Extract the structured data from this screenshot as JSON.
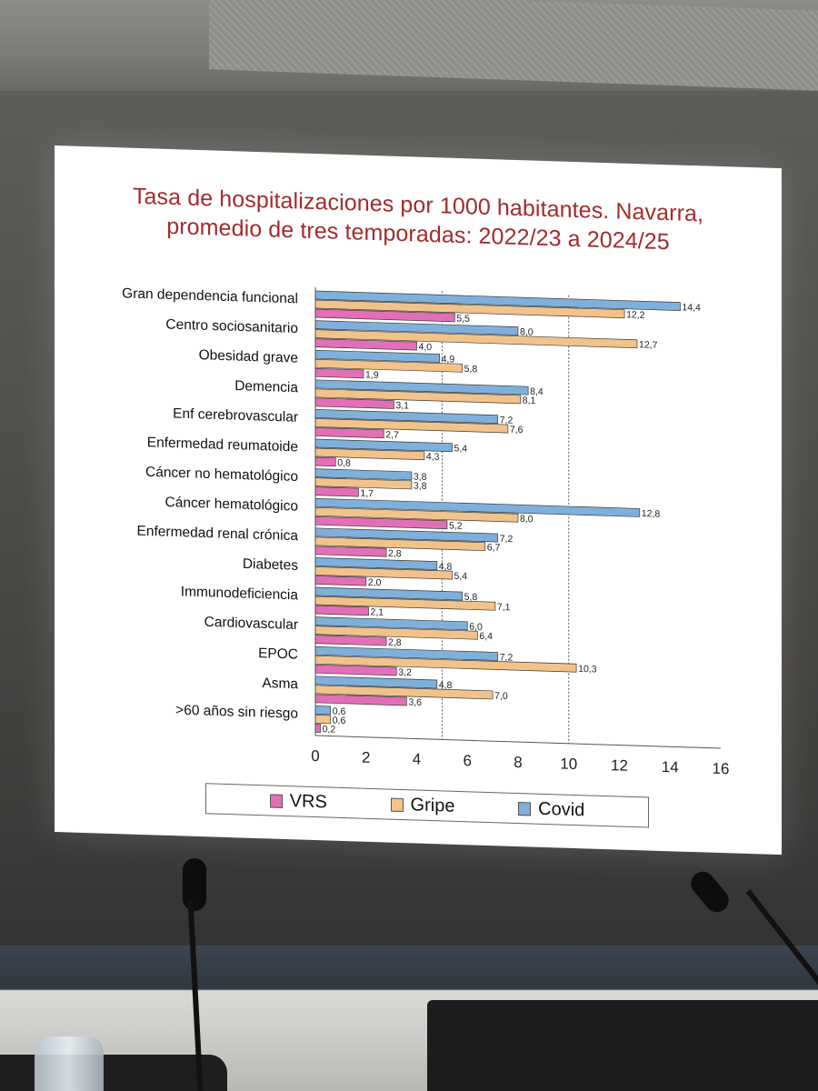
{
  "slide": {
    "title_line1": "Tasa de hospitalizaciones por 1000 habitantes. Navarra,",
    "title_line2": "promedio de tres temporadas: 2022/23 a 2024/25"
  },
  "colors": {
    "title": "#a32b2b",
    "VRS": "#e36fb7",
    "Gripe": "#f1c38a",
    "Covid": "#7fb0dc",
    "bar_outline": "#3a3a3a"
  },
  "chart_data": {
    "type": "bar",
    "orientation": "horizontal",
    "title": "Tasa de hospitalizaciones por 1000 habitantes. Navarra, promedio de tres temporadas: 2022/23 a 2024/25",
    "categories": [
      "Gran dependencia funcional",
      "Centro sociosanitario",
      "Obesidad grave",
      "Demencia",
      "Enf cerebrovascular",
      "Enfermedad reumatoide",
      "Cáncer no hematológico",
      "Cáncer hematológico",
      "Enfermedad renal crónica",
      "Diabetes",
      "Immunodeficiencia",
      "Cardiovascular",
      "EPOC",
      "Asma",
      ">60 años sin riesgo"
    ],
    "series": [
      {
        "name": "Covid",
        "values": [
          14.4,
          8.0,
          4.9,
          8.4,
          7.2,
          5.4,
          3.8,
          12.8,
          7.2,
          4.8,
          5.8,
          6.0,
          7.2,
          4.8,
          0.6
        ]
      },
      {
        "name": "Gripe",
        "values": [
          12.2,
          12.7,
          5.8,
          8.1,
          7.6,
          4.3,
          3.8,
          8.0,
          6.7,
          5.4,
          7.1,
          6.4,
          10.3,
          7.0,
          0.6
        ]
      },
      {
        "name": "VRS",
        "values": [
          5.5,
          4.0,
          1.9,
          3.1,
          2.7,
          0.8,
          1.7,
          5.2,
          2.8,
          2.0,
          2.1,
          2.8,
          3.2,
          3.6,
          0.2
        ]
      }
    ],
    "value_labels": {
      "Covid": [
        "14,4",
        "8,0",
        "4,9",
        "8,4",
        "7,2",
        "5,4",
        "3,8",
        "12,8",
        "7,2",
        "4,8",
        "5,8",
        "6,0",
        "7,2",
        "4,8",
        "0,6"
      ],
      "Gripe": [
        "12,2",
        "12,7",
        "5,8",
        "8,1",
        "7,6",
        "4,3",
        "3,8",
        "8,0",
        "6,7",
        "5,4",
        "7,1",
        "6,4",
        "10,3",
        "7,0",
        "0,6"
      ],
      "VRS": [
        "5,5",
        "4,0",
        "1,9",
        "3,1",
        "2,7",
        "0,8",
        "1,7",
        "5,2",
        "2,8",
        "2,0",
        "2,1",
        "2,8",
        "3,2",
        "3,6",
        "0,2"
      ]
    },
    "xlim": [
      0,
      16
    ],
    "xticks": [
      0,
      2,
      4,
      6,
      8,
      10,
      12,
      14,
      16
    ],
    "reference_lines": [
      5,
      10
    ],
    "grid": false,
    "legend": {
      "placement": "bottom",
      "entries": [
        "VRS",
        "Gripe",
        "Covid"
      ]
    }
  }
}
